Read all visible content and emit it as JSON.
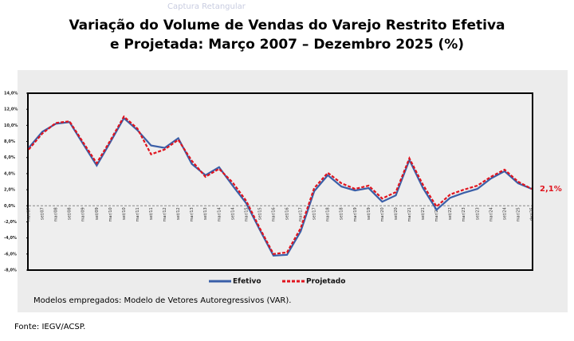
{
  "overlay_text": "Captura Retangular",
  "chart_data": {
    "type": "line",
    "title": "Variação do Volume de Vendas do Varejo Restrito Efetiva e Projetada: Março 2007 – Dezembro 2025 (%)",
    "categories": [
      "mar/07",
      "set/07",
      "mar/08",
      "set/08",
      "mar/09",
      "set/09",
      "mar/10",
      "set/10",
      "mar/11",
      "set/11",
      "mar/12",
      "set/12",
      "mar/13",
      "set/13",
      "mar/14",
      "set/14",
      "mar/15",
      "set/15",
      "mar/16",
      "set/16",
      "mar/17",
      "set/17",
      "mar/18",
      "set/18",
      "mar/19",
      "set/19",
      "mar/20",
      "set/20",
      "mar/21",
      "set/21",
      "mar/22",
      "set/22",
      "mar/23",
      "set/23",
      "mar/24",
      "set/24",
      "mar/25",
      "dez/25"
    ],
    "series": [
      {
        "name": "Efetivo",
        "color": "#3a5fa8",
        "dash": false,
        "values": [
          7.2,
          9.2,
          10.2,
          10.4,
          7.7,
          5.0,
          7.9,
          10.9,
          9.4,
          7.5,
          7.2,
          8.4,
          5.2,
          3.8,
          4.8,
          2.5,
          0.3,
          -3.0,
          -6.2,
          -6.1,
          -3.2,
          1.8,
          3.8,
          2.4,
          1.9,
          2.2,
          0.5,
          1.3,
          5.7,
          2.2,
          -0.5,
          1.0,
          1.6,
          2.1,
          3.4,
          4.3,
          2.8,
          2.1
        ]
      },
      {
        "name": "Projetado",
        "color": "#e0141e",
        "dash": true,
        "values": [
          7.0,
          9.0,
          10.3,
          10.5,
          7.9,
          5.3,
          8.1,
          11.1,
          9.6,
          6.4,
          7.0,
          8.2,
          5.6,
          3.6,
          4.6,
          2.9,
          0.6,
          -2.8,
          -6.0,
          -5.8,
          -2.8,
          2.2,
          4.1,
          2.8,
          2.1,
          2.5,
          0.9,
          1.7,
          5.9,
          2.6,
          -0.1,
          1.4,
          2.0,
          2.5,
          3.6,
          4.5,
          3.0,
          2.1
        ]
      }
    ],
    "annotation": {
      "text": "2,1%",
      "value": 2.1
    },
    "ylim": [
      -8,
      14
    ],
    "yticks": [
      {
        "value": -8,
        "label": "-8,0%"
      },
      {
        "value": -6,
        "label": "-6,0%"
      },
      {
        "value": -4,
        "label": "-4,0%"
      },
      {
        "value": -2,
        "label": "-2,0%"
      },
      {
        "value": 0,
        "label": "0,0%"
      },
      {
        "value": 2,
        "label": "2,0%"
      },
      {
        "value": 4,
        "label": "4,0%"
      },
      {
        "value": 6,
        "label": "6,0%"
      },
      {
        "value": 8,
        "label": "8,0%"
      },
      {
        "value": 10,
        "label": "10,0%"
      },
      {
        "value": 12,
        "label": "12,0%"
      },
      {
        "value": 14,
        "label": "14,0%"
      }
    ],
    "note": "Modelos empregados: Modelo de Vetores Autoregressivos (VAR).",
    "source": "Fonte: IEGV/ACSP."
  }
}
